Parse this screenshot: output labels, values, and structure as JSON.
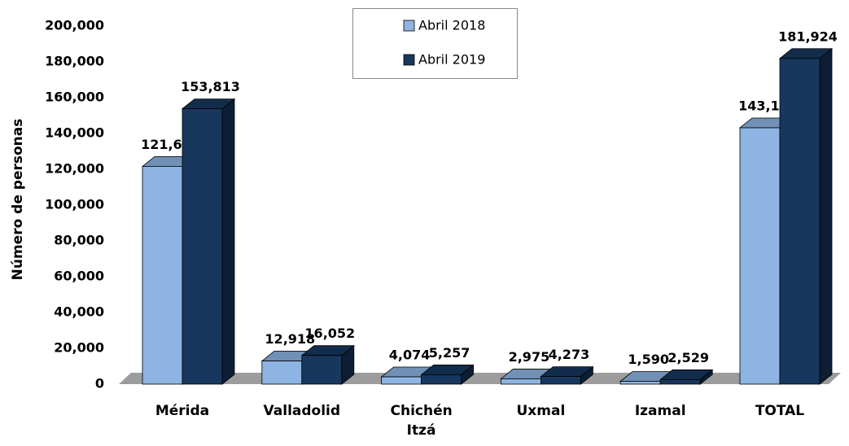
{
  "chart_data": {
    "type": "bar3d",
    "y_label": "Número de personas",
    "categories": [
      "Mérida",
      "Valladolid",
      "Chichén Itzá",
      "Uxmal",
      "Izamal",
      "TOTAL"
    ],
    "series": [
      {
        "name": "Abril 2018",
        "color": "#8db4e2",
        "values": [
          121633,
          12918,
          4074,
          2975,
          1590,
          143190
        ],
        "value_labels": [
          "121,633",
          "12,918",
          "4,074",
          "2,975",
          "1,590",
          "143,190"
        ]
      },
      {
        "name": "Abril 2019",
        "color": "#17375e",
        "values": [
          153813,
          16052,
          5257,
          4273,
          2529,
          181924
        ],
        "value_labels": [
          "153,813",
          "16,052",
          "5,257",
          "4,273",
          "2,529",
          "181,924"
        ]
      }
    ],
    "ylim": [
      0,
      200000
    ],
    "yticks": [
      0,
      {
        "value": 20000,
        "label": "20,000"
      },
      {
        "value": 40000,
        "label": "40,000"
      },
      {
        "value": 60000,
        "label": "60,000"
      },
      {
        "value": 80000,
        "label": "80,000"
      },
      {
        "value": 100000,
        "label": "100,000"
      },
      {
        "value": 120000,
        "label": "120,000"
      },
      {
        "value": 140000,
        "label": "140,000"
      },
      {
        "value": 160000,
        "label": "160,000"
      },
      {
        "value": 180000,
        "label": "180,000"
      },
      {
        "value": 200000,
        "label": "200,000"
      }
    ],
    "legend": "top"
  }
}
